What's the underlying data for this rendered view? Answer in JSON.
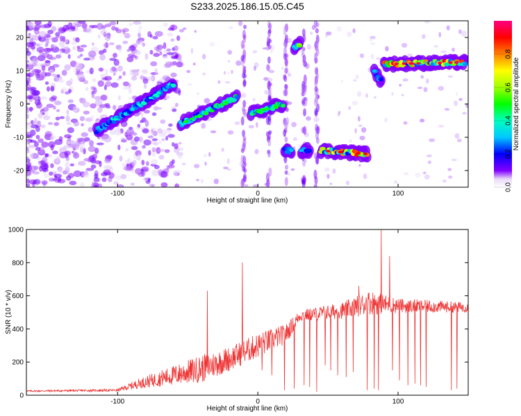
{
  "title": "S233.2025.186.15.05.C45",
  "chart_data": [
    {
      "type": "heatmap",
      "xlabel": "Height of straight line (km)",
      "ylabel": "Frequency (Hz)",
      "xlim": [
        -165,
        150
      ],
      "ylim": [
        -25,
        25
      ],
      "xticks": [
        -100,
        0,
        100
      ],
      "yticks": [
        -20,
        -10,
        0,
        10,
        20
      ],
      "colorbar": {
        "label": "Normalized spectral amplitude",
        "range": [
          0,
          1
        ],
        "ticks": [
          0.0,
          0.2,
          0.4,
          0.6,
          0.8
        ],
        "tick_labels": [
          "0.0",
          "0.2",
          "0.4",
          "0.6",
          "0.8"
        ]
      },
      "features": [
        {
          "x0": -115,
          "x1": -60,
          "y0": -8,
          "y1": 6,
          "peak": 0.4
        },
        {
          "x0": -55,
          "x1": -15,
          "y0": -6,
          "y1": 2,
          "peak": 0.5
        },
        {
          "x0": -5,
          "x1": 18,
          "y0": -3,
          "y1": 0,
          "peak": 0.5
        },
        {
          "x0": 26,
          "x1": 30,
          "y0": 17,
          "y1": 18,
          "peak": 0.6
        },
        {
          "x0": 19,
          "x1": 24,
          "y0": -14,
          "y1": -14,
          "peak": 0.3
        },
        {
          "x0": 31,
          "x1": 37,
          "y0": -14,
          "y1": -14,
          "peak": 0.3
        },
        {
          "x0": 45,
          "x1": 78,
          "y0": -14,
          "y1": -15,
          "peak": 0.9
        },
        {
          "x0": 83,
          "x1": 88,
          "y0": 10,
          "y1": 7,
          "peak": 0.3
        },
        {
          "x0": 90,
          "x1": 148,
          "y0": 12,
          "y1": 12.5,
          "peak": 0.95
        }
      ]
    },
    {
      "type": "line",
      "xlabel": "Height of straight line (km)",
      "ylabel": "SNR (10 * v/v)",
      "xlim": [
        -165,
        150
      ],
      "ylim": [
        0,
        1000
      ],
      "xticks": [
        -100,
        0,
        100
      ],
      "yticks": [
        0,
        200,
        400,
        600,
        800,
        1000
      ],
      "color": "#ee3333",
      "envelope": [
        {
          "x": -165,
          "base": 25,
          "amp": 10
        },
        {
          "x": -100,
          "base": 30,
          "amp": 15
        },
        {
          "x": -85,
          "base": 70,
          "amp": 60
        },
        {
          "x": -60,
          "base": 120,
          "amp": 120
        },
        {
          "x": -40,
          "base": 160,
          "amp": 170
        },
        {
          "x": -20,
          "base": 220,
          "amp": 150
        },
        {
          "x": 0,
          "base": 300,
          "amp": 150
        },
        {
          "x": 20,
          "base": 370,
          "amp": 120
        },
        {
          "x": 30,
          "base": 480,
          "amp": 70
        },
        {
          "x": 60,
          "base": 510,
          "amp": 100
        },
        {
          "x": 80,
          "base": 560,
          "amp": 150
        },
        {
          "x": 100,
          "base": 540,
          "amp": 90
        },
        {
          "x": 150,
          "base": 530,
          "amp": 60
        }
      ],
      "spikes": [
        {
          "x": -36,
          "y": 630
        },
        {
          "x": -11,
          "y": 800
        },
        {
          "x": 88,
          "y": 1000
        },
        {
          "x": 94,
          "y": 840
        },
        {
          "x": 72,
          "y": 660
        }
      ],
      "dropouts": [
        {
          "x": 19,
          "y": 30
        },
        {
          "x": 26,
          "y": 40
        },
        {
          "x": 33,
          "y": 60
        },
        {
          "x": 37,
          "y": 50
        },
        {
          "x": 42,
          "y": 20
        },
        {
          "x": 48,
          "y": 180
        },
        {
          "x": 52,
          "y": 150
        },
        {
          "x": 57,
          "y": 120
        },
        {
          "x": 63,
          "y": 110
        },
        {
          "x": 68,
          "y": 140
        },
        {
          "x": 78,
          "y": 30
        },
        {
          "x": 83,
          "y": 40
        },
        {
          "x": 86,
          "y": 30
        },
        {
          "x": 96,
          "y": 150
        },
        {
          "x": 101,
          "y": 90
        },
        {
          "x": 107,
          "y": 60
        },
        {
          "x": 112,
          "y": 70
        },
        {
          "x": 116,
          "y": 60
        },
        {
          "x": 120,
          "y": 50
        },
        {
          "x": 138,
          "y": 30
        },
        {
          "x": 142,
          "y": 40
        },
        {
          "x": 10,
          "y": 120
        },
        {
          "x": 3,
          "y": 150
        }
      ]
    }
  ]
}
